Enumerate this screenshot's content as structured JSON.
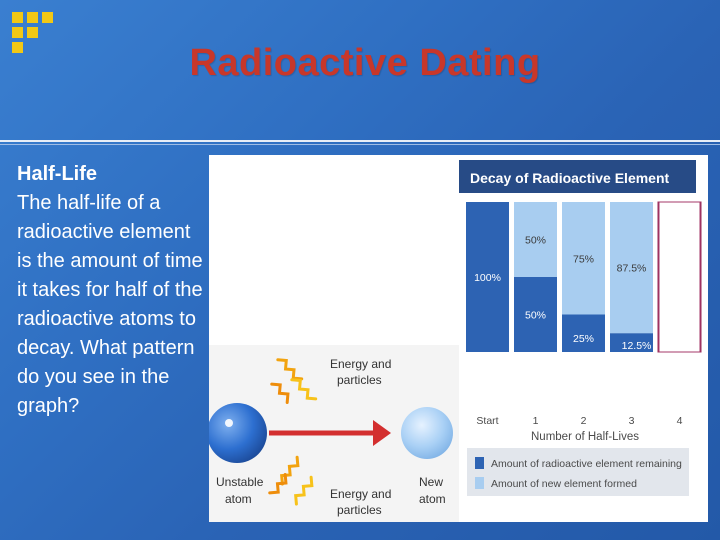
{
  "slide": {
    "title": "Radioactive Dating",
    "heading": "Half-Life",
    "body": "The half-life of a radioactive element is the amount of time it takes for half of the radioactive atoms to decay. What pattern do you see in the graph?"
  },
  "diagram": {
    "unstable_atom_label": [
      "Unstable",
      "atom"
    ],
    "new_atom_label": [
      "New",
      "atom"
    ],
    "energy_label_top": [
      "Energy and",
      "particles"
    ],
    "energy_label_bottom": [
      "Energy and",
      "particles"
    ]
  },
  "chart_data": {
    "type": "bar",
    "title": "Decay of Radioactive Element",
    "xlabel": "Number of Half-Lives",
    "categories": [
      "Start",
      "1",
      "2",
      "3",
      "4"
    ],
    "ylim": [
      0,
      100
    ],
    "series": [
      {
        "name": "Amount of radioactive element remaining",
        "color": "#2d63b3",
        "values": [
          100,
          50,
          25,
          12.5,
          0
        ]
      },
      {
        "name": "Amount of new element formed",
        "color": "#a8cdf0",
        "values": [
          0,
          50,
          75,
          87.5,
          100
        ]
      }
    ],
    "labels_remaining": [
      "100%",
      "50%",
      "25%",
      "12.5%",
      ""
    ],
    "labels_new": [
      "",
      "50%",
      "75%",
      "87.5%",
      ""
    ]
  }
}
